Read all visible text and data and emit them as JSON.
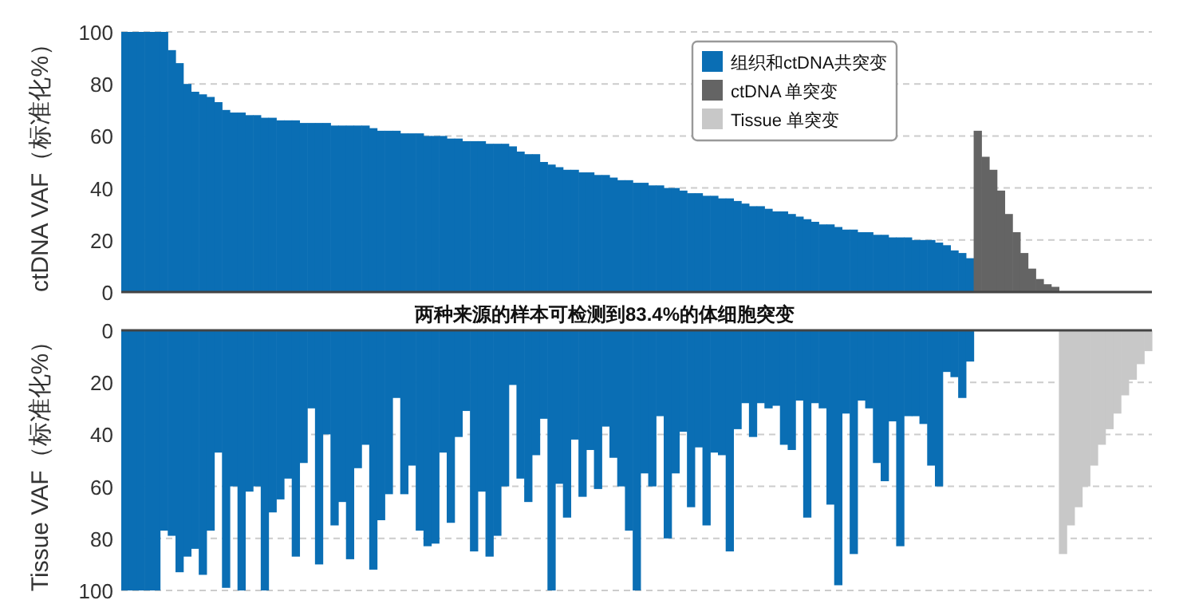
{
  "chart_data": [
    {
      "type": "bar",
      "ylabel": "ctDNA VAF（标准化%）",
      "categories": [
        null,
        null,
        null,
        null,
        null,
        null,
        null,
        null,
        null,
        null,
        null,
        null,
        null,
        null,
        null,
        null,
        null,
        null,
        null,
        null,
        null,
        null,
        null,
        null,
        null,
        null,
        null,
        null,
        null,
        null,
        null,
        null,
        null,
        null,
        null,
        null,
        null,
        null,
        null,
        null,
        null,
        null,
        null,
        null,
        null,
        null,
        null,
        null,
        null,
        null,
        null,
        null,
        null,
        null,
        null,
        null,
        null,
        null,
        null,
        null,
        null,
        null,
        null,
        null,
        null,
        null,
        null,
        null,
        null,
        null,
        null,
        null,
        null,
        null,
        null,
        null,
        null,
        null,
        null,
        null,
        null,
        null,
        null,
        null,
        null,
        null,
        null,
        null,
        null,
        null,
        null,
        null,
        null,
        null,
        null,
        null,
        null,
        null,
        null,
        null,
        null,
        null,
        null,
        null,
        null,
        null,
        null,
        null,
        null,
        null,
        null,
        null,
        null,
        null,
        null,
        null,
        null,
        null,
        null,
        null,
        null,
        null,
        null,
        null,
        null,
        null,
        null,
        null,
        null,
        null,
        null,
        null,
        null
      ],
      "series": [
        {
          "name": "组织和ctDNA共突变",
          "color": "#0a6eb4",
          "values": [
            100,
            100,
            100,
            100,
            100,
            100,
            93,
            88,
            80,
            77,
            76,
            75,
            73,
            70,
            69,
            69,
            68,
            68,
            67,
            67,
            66,
            66,
            66,
            65,
            65,
            65,
            65,
            64,
            64,
            64,
            64,
            64,
            63,
            62,
            62,
            62,
            61,
            61,
            61,
            60,
            60,
            60,
            59,
            59,
            58,
            58,
            58,
            57,
            57,
            57,
            56,
            54,
            53,
            53,
            50,
            49,
            48,
            47,
            47,
            46,
            46,
            45,
            45,
            44,
            43,
            43,
            42,
            42,
            41,
            41,
            40,
            40,
            39,
            38,
            38,
            37,
            37,
            36,
            36,
            35,
            34,
            33,
            33,
            32,
            31,
            31,
            30,
            29,
            28,
            27,
            26,
            26,
            25,
            24,
            24,
            23,
            23,
            22,
            22,
            21,
            21,
            21,
            20,
            20,
            20,
            19,
            18,
            16,
            15,
            13,
            null,
            null,
            null,
            null,
            null,
            null,
            null,
            null,
            null,
            null,
            null,
            null,
            null,
            null,
            null,
            null,
            null,
            null,
            null,
            null,
            null,
            null,
            null
          ]
        },
        {
          "name": "ctDNA 单突变",
          "color": "#646464",
          "values": [
            null,
            null,
            null,
            null,
            null,
            null,
            null,
            null,
            null,
            null,
            null,
            null,
            null,
            null,
            null,
            null,
            null,
            null,
            null,
            null,
            null,
            null,
            null,
            null,
            null,
            null,
            null,
            null,
            null,
            null,
            null,
            null,
            null,
            null,
            null,
            null,
            null,
            null,
            null,
            null,
            null,
            null,
            null,
            null,
            null,
            null,
            null,
            null,
            null,
            null,
            null,
            null,
            null,
            null,
            null,
            null,
            null,
            null,
            null,
            null,
            null,
            null,
            null,
            null,
            null,
            null,
            null,
            null,
            null,
            null,
            null,
            null,
            null,
            null,
            null,
            null,
            null,
            null,
            null,
            null,
            null,
            null,
            null,
            null,
            null,
            null,
            null,
            null,
            null,
            null,
            null,
            null,
            null,
            null,
            null,
            null,
            null,
            null,
            null,
            null,
            null,
            null,
            null,
            null,
            null,
            null,
            null,
            null,
            null,
            null,
            62,
            52,
            47,
            39,
            30,
            23,
            15,
            9,
            5,
            3,
            2,
            null,
            null,
            null,
            null,
            null,
            null,
            null,
            null,
            null,
            null,
            null,
            null
          ]
        },
        {
          "name": "Tissue 单突变",
          "color": "#c8c8c8",
          "values": [
            null,
            null,
            null,
            null,
            null,
            null,
            null,
            null,
            null,
            null,
            null,
            null,
            null,
            null,
            null,
            null,
            null,
            null,
            null,
            null,
            null,
            null,
            null,
            null,
            null,
            null,
            null,
            null,
            null,
            null,
            null,
            null,
            null,
            null,
            null,
            null,
            null,
            null,
            null,
            null,
            null,
            null,
            null,
            null,
            null,
            null,
            null,
            null,
            null,
            null,
            null,
            null,
            null,
            null,
            null,
            null,
            null,
            null,
            null,
            null,
            null,
            null,
            null,
            null,
            null,
            null,
            null,
            null,
            null,
            null,
            null,
            null,
            null,
            null,
            null,
            null,
            null,
            null,
            null,
            null,
            null,
            null,
            null,
            null,
            null,
            null,
            null,
            null,
            null,
            null,
            null,
            null,
            null,
            null,
            null,
            null,
            null,
            null,
            null,
            null,
            null,
            null,
            null,
            null,
            null,
            null,
            null,
            null,
            null,
            null,
            null,
            null,
            null,
            null,
            null,
            null,
            null,
            null,
            null,
            null,
            null,
            null,
            null,
            null,
            null,
            null,
            null,
            null,
            null,
            null,
            null,
            null,
            null
          ]
        }
      ],
      "ylim": [
        0,
        100
      ],
      "yticks": [
        0,
        20,
        40,
        60,
        80,
        100
      ],
      "grid": "y",
      "legend": "top right"
    },
    {
      "type": "bar",
      "title": "两种来源的样本可检测到83.4%的体细胞突变",
      "ylabel": "Tissue VAF（标准化%）",
      "categories": [
        null,
        null,
        null,
        null,
        null,
        null,
        null,
        null,
        null,
        null,
        null,
        null,
        null,
        null,
        null,
        null,
        null,
        null,
        null,
        null,
        null,
        null,
        null,
        null,
        null,
        null,
        null,
        null,
        null,
        null,
        null,
        null,
        null,
        null,
        null,
        null,
        null,
        null,
        null,
        null,
        null,
        null,
        null,
        null,
        null,
        null,
        null,
        null,
        null,
        null,
        null,
        null,
        null,
        null,
        null,
        null,
        null,
        null,
        null,
        null,
        null,
        null,
        null,
        null,
        null,
        null,
        null,
        null,
        null,
        null,
        null,
        null,
        null,
        null,
        null,
        null,
        null,
        null,
        null,
        null,
        null,
        null,
        null,
        null,
        null,
        null,
        null,
        null,
        null,
        null,
        null,
        null,
        null,
        null,
        null,
        null,
        null,
        null,
        null,
        null,
        null,
        null,
        null,
        null,
        null,
        null,
        null,
        null,
        null,
        null,
        null,
        null,
        null,
        null,
        null,
        null,
        null,
        null,
        null,
        null,
        null,
        null,
        null,
        null,
        null,
        null,
        null,
        null,
        null,
        null,
        null,
        null,
        null
      ],
      "series": [
        {
          "color": "#0a6eb4",
          "values": [
            100,
            100,
            100,
            100,
            100,
            77,
            79,
            93,
            87,
            84,
            94,
            77,
            47,
            99,
            60,
            100,
            62,
            60,
            100,
            70,
            65,
            57,
            87,
            51,
            30,
            90,
            40,
            75,
            66,
            88,
            53,
            44,
            92,
            73,
            63,
            26,
            63,
            52,
            77,
            83,
            82,
            47,
            74,
            41,
            31,
            85,
            62,
            87,
            79,
            60,
            21,
            57,
            66,
            48,
            34,
            100,
            59,
            72,
            42,
            64,
            46,
            61,
            37,
            49,
            60,
            77,
            100,
            55,
            60,
            33,
            80,
            55,
            39,
            68,
            45,
            75,
            47,
            48,
            85,
            38,
            28,
            41,
            28,
            30,
            29,
            44,
            46,
            27,
            72,
            28,
            30,
            67,
            98,
            32,
            86,
            27,
            30,
            51,
            58,
            35,
            83,
            33,
            33,
            36,
            52,
            60,
            16,
            18,
            26,
            12,
            null,
            null,
            null,
            null,
            null,
            null,
            null,
            null,
            null,
            null,
            null,
            null,
            null,
            null,
            null,
            null,
            null,
            null,
            null,
            null,
            null,
            null,
            null
          ]
        },
        {
          "color": "#c8c8c8",
          "values": [
            null,
            null,
            null,
            null,
            null,
            null,
            null,
            null,
            null,
            null,
            null,
            null,
            null,
            null,
            null,
            null,
            null,
            null,
            null,
            null,
            null,
            null,
            null,
            null,
            null,
            null,
            null,
            null,
            null,
            null,
            null,
            null,
            null,
            null,
            null,
            null,
            null,
            null,
            null,
            null,
            null,
            null,
            null,
            null,
            null,
            null,
            null,
            null,
            null,
            null,
            null,
            null,
            null,
            null,
            null,
            null,
            null,
            null,
            null,
            null,
            null,
            null,
            null,
            null,
            null,
            null,
            null,
            null,
            null,
            null,
            null,
            null,
            null,
            null,
            null,
            null,
            null,
            null,
            null,
            null,
            null,
            null,
            null,
            null,
            null,
            null,
            null,
            null,
            null,
            null,
            null,
            null,
            null,
            null,
            null,
            null,
            null,
            null,
            null,
            null,
            null,
            null,
            null,
            null,
            null,
            null,
            null,
            null,
            null,
            null,
            null,
            null,
            null,
            null,
            null,
            null,
            null,
            null,
            null,
            null,
            null,
            86,
            75,
            68,
            60,
            52,
            44,
            38,
            32,
            25,
            19,
            13,
            8
          ]
        }
      ],
      "ylim": [
        100,
        0
      ],
      "yticks": [
        0,
        20,
        40,
        60,
        80,
        100
      ],
      "grid": "y"
    }
  ]
}
